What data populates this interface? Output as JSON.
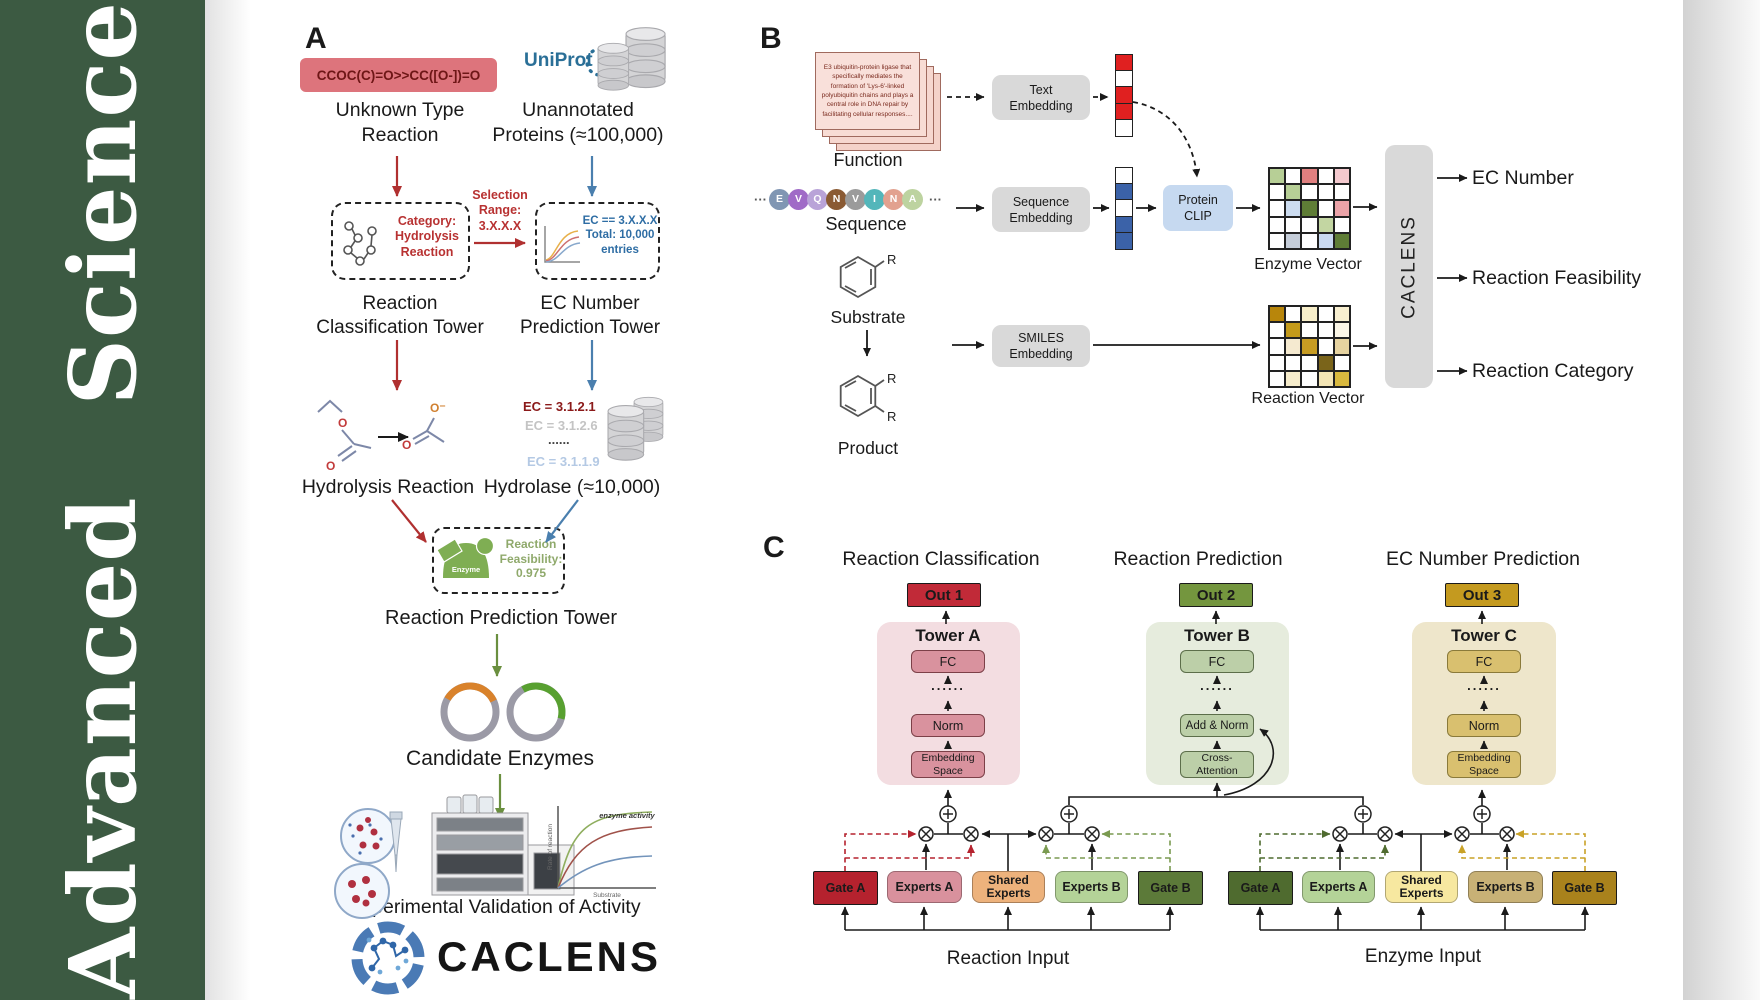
{
  "colors": {
    "sidebar_green": "#3c5a42",
    "smiles_box": "#dd747c",
    "red_arrow": "#b03030",
    "blue_arrow": "#4a7fae",
    "green_arrow": "#6a8f3f",
    "out1": "#c12a38",
    "out2": "#74963e",
    "out3": "#c49a1f",
    "tower_a_bg": "#f3dde1",
    "tower_b_bg": "#e6ecdd",
    "tower_c_bg": "#eee6cb",
    "protein_clip_bg": "#c6d9f0",
    "embedding_box_bg": "#d9d9d9"
  },
  "journal": {
    "name": "Advanced Science"
  },
  "panelA": {
    "label": "A",
    "smiles": "CCOC(C)=O>>CC([O-])=O",
    "uniprot": "UniProt",
    "unknown_type": "Unknown Type\nReaction",
    "unannotated": "Unannotated\nProteins (≈100,000)",
    "category_box": "Category:\nHydrolysis\nReaction",
    "selection": "Selection\nRange:\n3.X.X.X",
    "ec_box": "EC == 3.X.X.X\nTotal: 10,000\nentries",
    "classification_tower": "Reaction\nClassification Tower",
    "ec_tower": "EC Number\nPrediction Tower",
    "hydrolysis_reaction": "Hydrolysis Reaction",
    "ec_results": {
      "top": "EC = 3.1.2.1",
      "second": "EC = 3.1.2.6",
      "dots": "......",
      "last": "EC = 3.1.1.9"
    },
    "hydrolase": "Hydrolase (≈10,000)",
    "enzyme_icon_label": "Enzyme",
    "feasibility": "Reaction\nFeasibility:\n0.975",
    "prediction_tower": "Reaction Prediction Tower",
    "candidate_enzymes": "Candidate Enzymes",
    "validation": "Experimental Validation of Activity",
    "brand": "CACLENS",
    "kinetics": {
      "ylabel": "Rate of reaction",
      "xlabel": "Substrate",
      "annotation": "enzyme activity"
    },
    "atoms": {
      "o": "O",
      "o_minus": "O⁻"
    }
  },
  "panelB": {
    "label": "B",
    "function_card": "E3 ubiquitin-protein ligase that specifically mediates the formation of 'Lys-6'-linked polyubiquitin chains and plays a central role in DNA repair by facilitating cellular responses....",
    "function": "Function",
    "ellipsis": "···",
    "sequence": "Sequence",
    "sequence_letters": [
      {
        "letter": "E",
        "color": "#8096b3"
      },
      {
        "letter": "V",
        "color": "#a06bc7"
      },
      {
        "letter": "Q",
        "color": "#b9a3d8"
      },
      {
        "letter": "N",
        "color": "#8a5a33"
      },
      {
        "letter": "V",
        "color": "#9b9b9b"
      },
      {
        "letter": "I",
        "color": "#53b6ba"
      },
      {
        "letter": "N",
        "color": "#e2a18f"
      },
      {
        "letter": "A",
        "color": "#bdd3a0"
      }
    ],
    "substrate": "Substrate",
    "product": "Product",
    "r_label": "R",
    "text_embedding": "Text\nEmbedding",
    "sequence_embedding": "Sequence\nEmbedding",
    "smiles_embedding": "SMILES\nEmbedding",
    "protein_clip": "Protein\nCLIP",
    "text_vector": [
      "#e02020",
      "#ffffff",
      "#e02020",
      "#e02020",
      "#ffffff"
    ],
    "sequence_vector": [
      "#ffffff",
      "#3b62a8",
      "#ffffff",
      "#3b62a8",
      "#3b62a8"
    ],
    "enzyme_vector_label": "Enzyme Vector",
    "reaction_vector_label": "Reaction Vector",
    "enzyme_matrix": [
      "#b7cf96",
      "#ffffff",
      "#e08080",
      "#ffffff",
      "#f4c9ce",
      "#ffffff",
      "#b7cf96",
      "#ffffff",
      "#ffffff",
      "#ffffff",
      "#ffffff",
      "#ccdcf0",
      "#5f7d36",
      "#ffffff",
      "#eba3a8",
      "#ffffff",
      "#ffffff",
      "#ffffff",
      "#c3d6a2",
      "#ffffff",
      "#ffffff",
      "#c5cdd9",
      "#ffffff",
      "#c9d9f0",
      "#5f7d36"
    ],
    "reaction_matrix": [
      "#b8860b",
      "#ffffff",
      "#f7eec9",
      "#ffffff",
      "#f8efd0",
      "#ffffff",
      "#c49a1a",
      "#ffffff",
      "#ffffff",
      "#fbf6e7",
      "#ffffff",
      "#f5ead0",
      "#c79c23",
      "#ffffff",
      "#e6d3a0",
      "#ffffff",
      "#ffffff",
      "#ffffff",
      "#7a641a",
      "#ffffff",
      "#ffffff",
      "#f6eccb",
      "#ffffff",
      "#f3e5b5",
      "#d9b93f"
    ],
    "caclens": "CACLENS",
    "outputs": {
      "ec": "EC Number",
      "feasibility": "Reaction Feasibility",
      "category": "Reaction Category"
    }
  },
  "panelC": {
    "label": "C",
    "titles": {
      "classification": "Reaction Classification",
      "prediction": "Reaction Prediction",
      "ec": "EC Number Prediction"
    },
    "out1": "Out 1",
    "out2": "Out 2",
    "out3": "Out 3",
    "towerA": {
      "title": "Tower A",
      "fc": "FC",
      "dots": "......",
      "norm": "Norm",
      "embedding": "Embedding\nSpace"
    },
    "towerB": {
      "title": "Tower B",
      "fc": "FC",
      "dots": "......",
      "add_norm": "Add & Norm",
      "cross": "Cross-\nAttention"
    },
    "towerC": {
      "title": "Tower C",
      "fc": "FC",
      "dots": "......",
      "norm": "Norm",
      "embedding": "Embedding\nSpace"
    },
    "reaction_moe": {
      "gate_a": "Gate A",
      "experts_a": "Experts A",
      "shared": "Shared\nExperts",
      "experts_b": "Experts B",
      "gate_b": "Gate B",
      "input": "Reaction Input"
    },
    "enzyme_moe": {
      "gate_a": "Gate A",
      "experts_a": "Experts A",
      "shared": "Shared\nExperts",
      "experts_b": "Experts B",
      "gate_b": "Gate B",
      "input": "Enzyme Input"
    }
  }
}
